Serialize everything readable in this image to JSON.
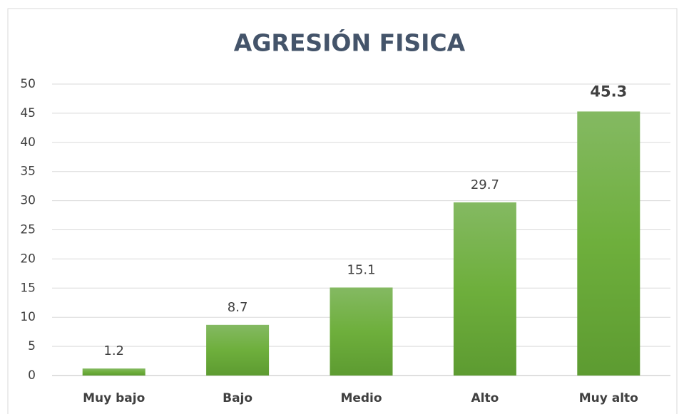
{
  "chart_data": {
    "type": "bar",
    "title": "AGRESIÓN FISICA",
    "categories": [
      "Muy bajo",
      "Bajo",
      "Medio",
      "Alto",
      "Muy alto"
    ],
    "values": [
      1.2,
      8.7,
      15.1,
      29.7,
      45.3
    ],
    "color": "#70ad47",
    "ylim": [
      0,
      50
    ],
    "yticks": [
      0,
      5,
      10,
      15,
      20,
      25,
      30,
      35,
      40,
      45,
      50
    ],
    "grid": true
  }
}
